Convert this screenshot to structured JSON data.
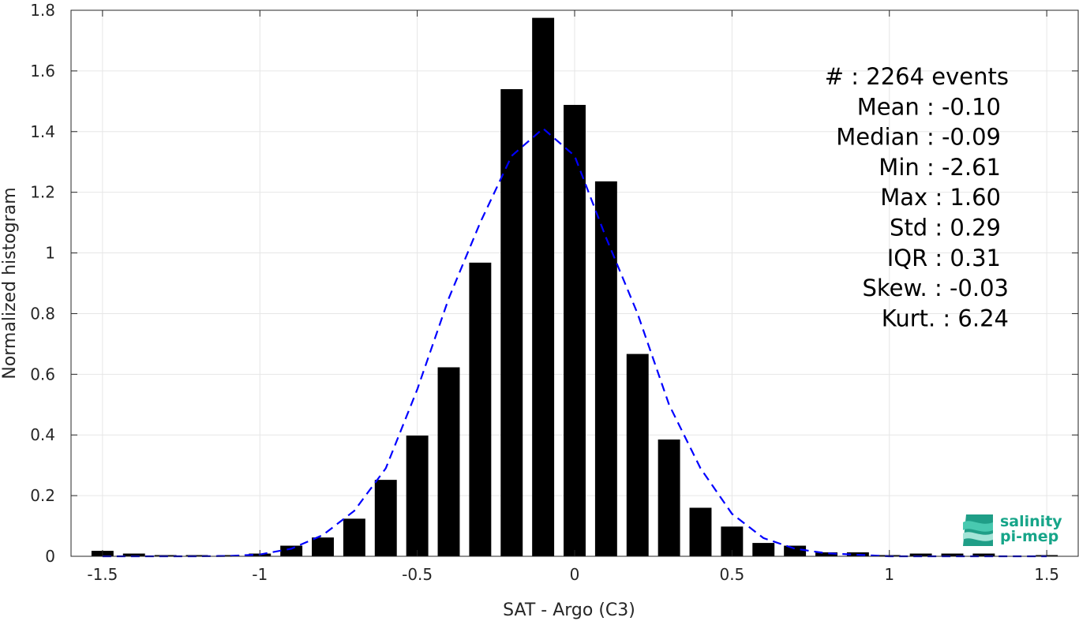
{
  "chart_data": {
    "type": "bar",
    "xlabel": "SAT - Argo (C3)",
    "ylabel": "Normalized histogram",
    "xlim": [
      -1.6,
      1.6
    ],
    "ylim": [
      0,
      1.8
    ],
    "grid": true,
    "x_ticks": [
      -1.5,
      -1,
      -0.5,
      0,
      0.5,
      1,
      1.5
    ],
    "x_tick_labels": [
      "-1.5",
      "-1",
      "-0.5",
      "0",
      "0.5",
      "1",
      "1.5"
    ],
    "y_ticks": [
      0,
      0.2,
      0.4,
      0.6,
      0.8,
      1,
      1.2,
      1.4,
      1.6,
      1.8
    ],
    "y_tick_labels": [
      "0",
      "0.2",
      "0.4",
      "0.6",
      "0.8",
      "1",
      "1.2",
      "1.4",
      "1.6",
      "1.8"
    ],
    "bar_width": 0.07,
    "bar_color": "#000000",
    "bars": {
      "x": [
        -1.5,
        -1.4,
        -1.3,
        -1.2,
        -1.1,
        -1.0,
        -0.9,
        -0.8,
        -0.7,
        -0.6,
        -0.5,
        -0.4,
        -0.3,
        -0.2,
        -0.1,
        0.0,
        0.1,
        0.2,
        0.3,
        0.4,
        0.5,
        0.6,
        0.7,
        0.8,
        0.9,
        1.0,
        1.1,
        1.2,
        1.3,
        1.4,
        1.5
      ],
      "values": [
        0.018,
        0.009,
        0.004,
        0.004,
        0.004,
        0.009,
        0.035,
        0.062,
        0.124,
        0.252,
        0.398,
        0.623,
        0.968,
        1.54,
        1.775,
        1.488,
        1.236,
        0.667,
        0.385,
        0.16,
        0.098,
        0.044,
        0.035,
        0.013,
        0.013,
        0.004,
        0.009,
        0.009,
        0.009,
        0.0,
        0.004
      ]
    },
    "fit_curve": {
      "color": "#0000ff",
      "style": "dashed",
      "x": [
        -1.5,
        -1.4,
        -1.3,
        -1.2,
        -1.1,
        -1.0,
        -0.9,
        -0.8,
        -0.7,
        -0.6,
        -0.5,
        -0.4,
        -0.3,
        -0.2,
        -0.1,
        0.0,
        0.1,
        0.2,
        0.3,
        0.4,
        0.5,
        0.6,
        0.7,
        0.8,
        0.9,
        1.0,
        1.1,
        1.2,
        1.3,
        1.4,
        1.5
      ],
      "values": [
        0.0,
        0.0,
        0.0,
        0.0,
        0.001,
        0.006,
        0.025,
        0.07,
        0.15,
        0.29,
        0.55,
        0.85,
        1.1,
        1.32,
        1.41,
        1.32,
        1.05,
        0.8,
        0.5,
        0.29,
        0.14,
        0.06,
        0.025,
        0.01,
        0.005,
        0.0,
        0.0,
        0.0,
        0.0,
        0.0,
        0.0
      ]
    },
    "annotations": [
      "#  : 2264 events",
      "Mean : -0.10",
      "Median : -0.09",
      "Min : -2.61",
      "Max : 1.60",
      "Std : 0.29",
      "IQR : 0.31",
      "Skew. : -0.03",
      "Kurt. : 6.24"
    ]
  },
  "logo": {
    "line1": "salinity",
    "line2": "pi-mep",
    "color": "#17a589"
  }
}
